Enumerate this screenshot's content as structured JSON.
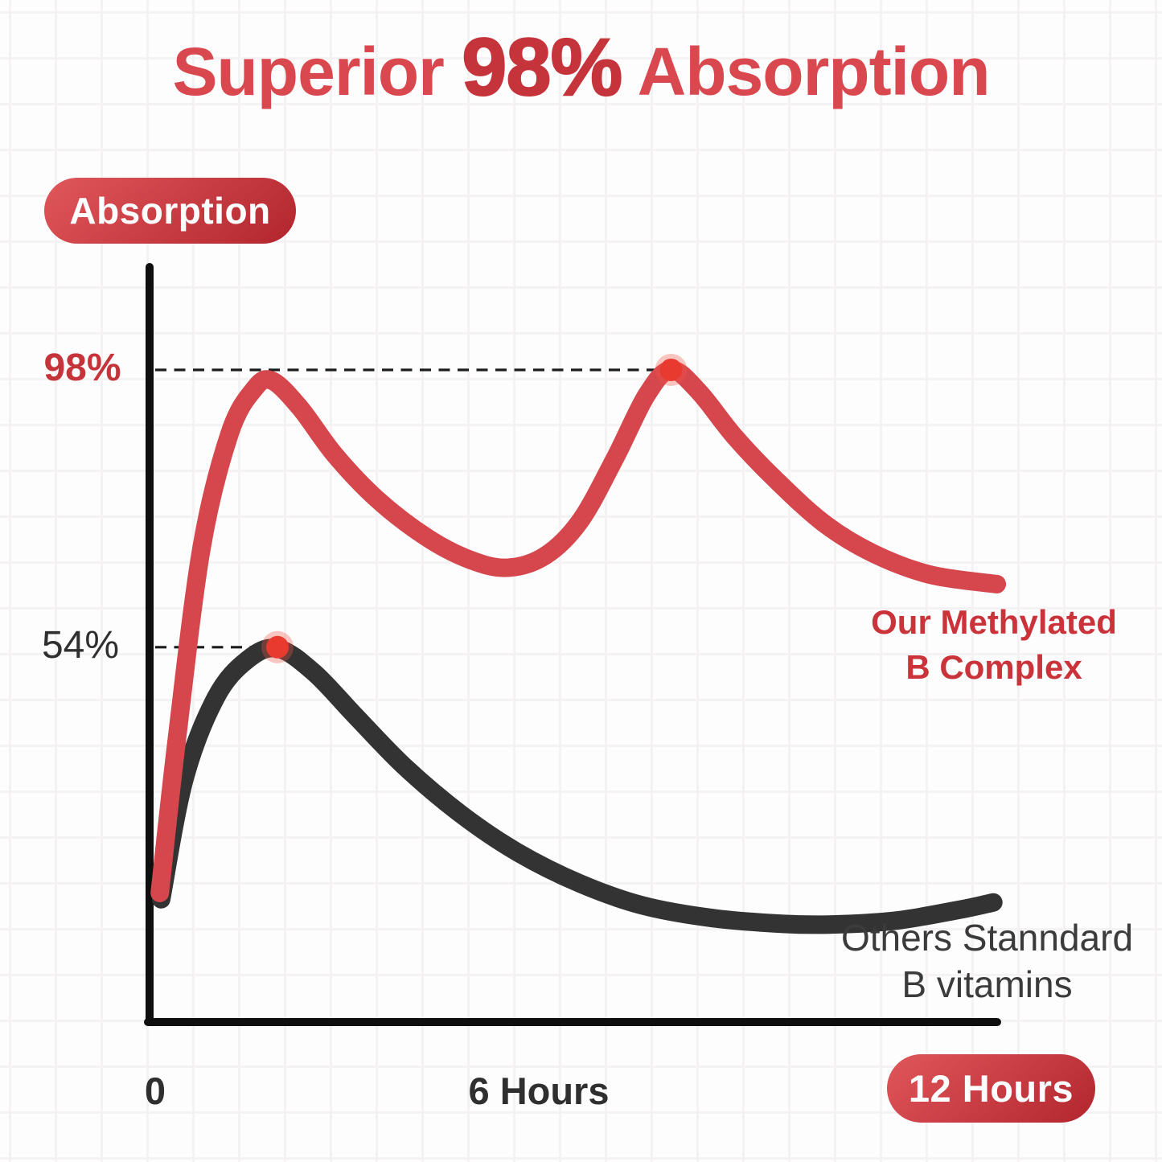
{
  "title": {
    "prefix": "Superior",
    "highlight": "98%",
    "suffix": "Absorption"
  },
  "colors": {
    "title_text": "#d9484e",
    "title_highlight": "#c5343b",
    "series_red": "#d5464d",
    "series_black": "#333333",
    "marker": "#e93a30",
    "marker_halo": "#ef5547",
    "axis": "#0f0f0f",
    "dash": "#1c1c1c",
    "pill_gradient_start": "#e0575b",
    "pill_gradient_end": "#b2252d",
    "label_dark": "#2f2f2f",
    "legend_red": "#ca333a",
    "legend_black": "#3b3b3b"
  },
  "legend": {
    "red": [
      "Our Methylated",
      "B Complex"
    ],
    "black": [
      "Others Stanndard",
      "B vitamins"
    ]
  },
  "chart_data": {
    "type": "line",
    "title": "Superior 98% Absorption",
    "ylabel": "Absorption",
    "xlabel": "Hours",
    "xlim": [
      0,
      12.2
    ],
    "ylim": [
      0,
      110
    ],
    "grid": true,
    "legend_position": "right-of-curve-ends",
    "x_ticks": [
      "0",
      "6 Hours",
      "12 Hours"
    ],
    "y_guides": [
      {
        "label": "98%",
        "value": 98
      },
      {
        "label": "54%",
        "value": 54
      }
    ],
    "series": [
      {
        "name": "Our Methylated B Complex",
        "color": "#d5464d",
        "peak_label": "98%",
        "peak": {
          "x": 7.4,
          "y": 98
        },
        "points": [
          [
            0.1,
            15
          ],
          [
            0.35,
            40
          ],
          [
            0.7,
            70
          ],
          [
            1.1,
            88
          ],
          [
            1.45,
            95
          ],
          [
            1.7,
            96.3
          ],
          [
            2.1,
            92
          ],
          [
            2.6,
            84.5
          ],
          [
            3.2,
            77.5
          ],
          [
            3.9,
            71.5
          ],
          [
            4.5,
            68
          ],
          [
            5.05,
            66.6
          ],
          [
            5.6,
            68.5
          ],
          [
            6.1,
            74
          ],
          [
            6.6,
            84
          ],
          [
            7.05,
            94
          ],
          [
            7.4,
            98
          ],
          [
            7.8,
            94.5
          ],
          [
            8.3,
            87.5
          ],
          [
            8.9,
            80.5
          ],
          [
            9.6,
            73.5
          ],
          [
            10.3,
            68.8
          ],
          [
            11.1,
            65.5
          ],
          [
            12.05,
            64
          ]
        ]
      },
      {
        "name": "Others Stanndard B vitamins",
        "color": "#333333",
        "peak_label": "54%",
        "peak": {
          "x": 1.78,
          "y": 54
        },
        "points": [
          [
            0.12,
            14
          ],
          [
            0.45,
            33
          ],
          [
            0.9,
            46
          ],
          [
            1.35,
            52
          ],
          [
            1.78,
            53.8
          ],
          [
            2.3,
            50
          ],
          [
            2.9,
            43
          ],
          [
            3.6,
            35
          ],
          [
            4.4,
            27.5
          ],
          [
            5.2,
            21.5
          ],
          [
            6.1,
            16.5
          ],
          [
            7.0,
            13
          ],
          [
            8.0,
            11
          ],
          [
            9.0,
            10.1
          ],
          [
            9.7,
            10
          ],
          [
            10.6,
            10.6
          ],
          [
            11.5,
            12.3
          ],
          [
            12.0,
            13.5
          ]
        ]
      }
    ]
  }
}
